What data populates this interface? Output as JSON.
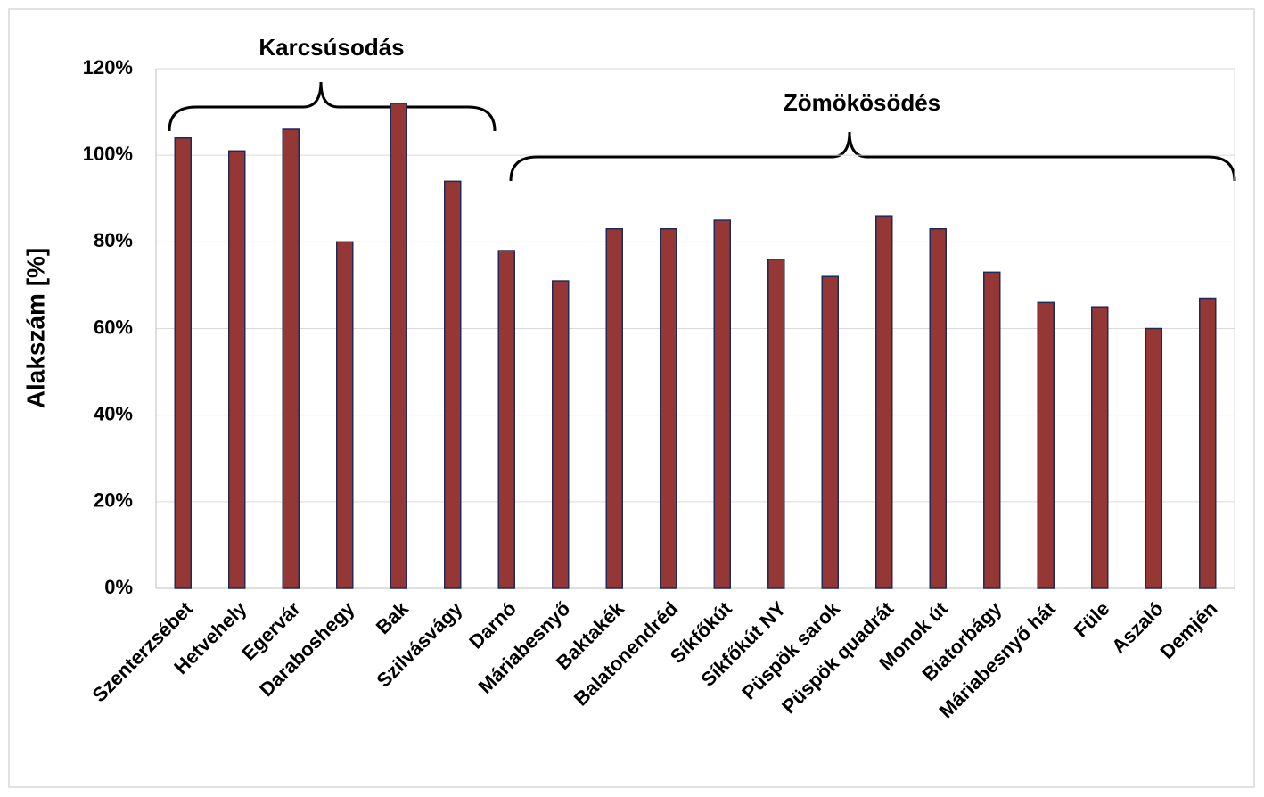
{
  "chart_data": {
    "type": "bar",
    "y_label": "Alakszám [%]",
    "annotations": [
      "Karcsúsodás",
      "Zömökösödés"
    ],
    "categories": [
      "Szenterzsébet",
      "Hetvehely",
      "Egervár",
      "Daraboshegy",
      "Bak",
      "Szilvásvágy",
      "Darnó",
      "Máriabesnyő",
      "Baktakék",
      "Balatonendréd",
      "Síkfőkút",
      "Síkfőkút NY",
      "Püspök sarok",
      "Püspök quadrát",
      "Monok út",
      "Biatorbágy",
      "Máriabesnyő hát",
      "Füle",
      "Aszaló",
      "Demjén"
    ],
    "values": [
      104,
      101,
      106,
      80,
      112,
      94,
      78,
      71,
      83,
      83,
      85,
      76,
      72,
      86,
      83,
      73,
      66,
      65,
      60,
      67
    ],
    "color": "#953735",
    "ylim": [
      0,
      120
    ],
    "yticks": [
      {
        "value": 0,
        "label": "0%"
      },
      {
        "value": 20,
        "label": "20%"
      },
      {
        "value": 40,
        "label": "40%"
      },
      {
        "value": 60,
        "label": "60%"
      },
      {
        "value": 80,
        "label": "80%"
      },
      {
        "value": 100,
        "label": "100%"
      },
      {
        "value": 120,
        "label": "120%"
      }
    ],
    "grid": true
  }
}
